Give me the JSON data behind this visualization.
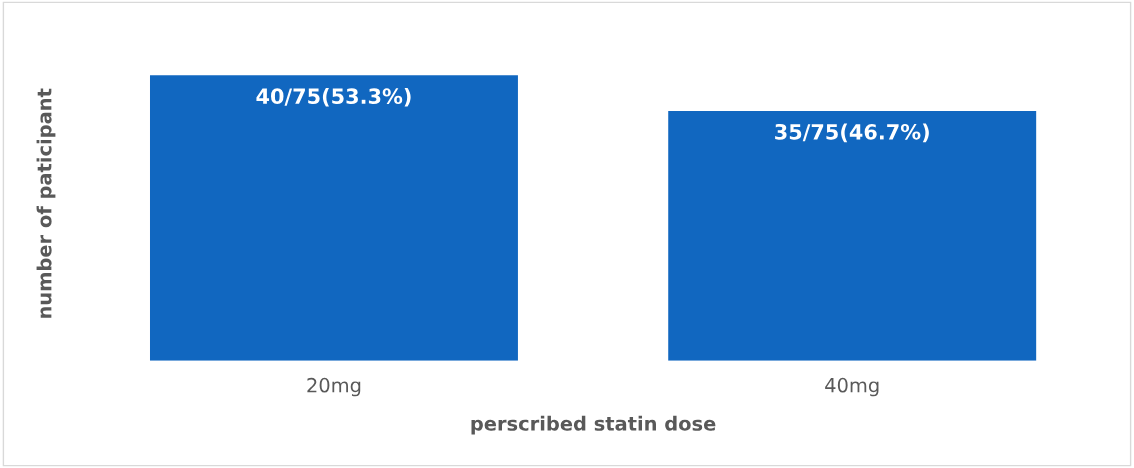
{
  "chart_data": {
    "type": "bar",
    "tick_labels": "x",
    "xlabel": "perscribed statin dose",
    "ylabel": "number of paticipant",
    "categories": [
      "20mg",
      "40mg"
    ],
    "values": [
      40,
      35
    ],
    "value_labels": [
      "40/75(53.3%)",
      "35/75(46.7%)"
    ],
    "color": "#1167c0",
    "grid": false,
    "legend": false
  }
}
